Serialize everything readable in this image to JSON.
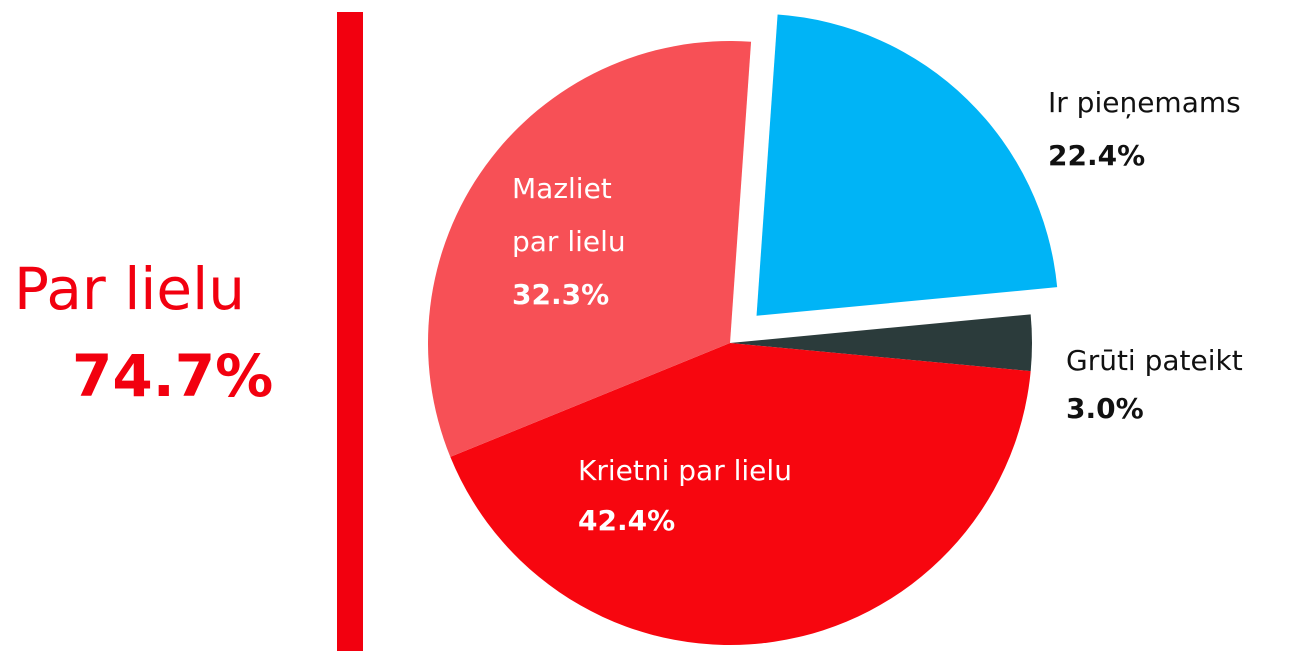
{
  "chart_data": {
    "type": "pie",
    "categories": [
      "Ir pieņemams",
      "Grūti pateikt",
      "Krietni par lielu",
      "Mazliet par lielu"
    ],
    "values": [
      22.4,
      3.0,
      42.4,
      32.3
    ],
    "value_labels": [
      "22.4%",
      "3.0%",
      "42.4%",
      "32.3%"
    ],
    "colors": [
      "#00b4f6",
      "#2b3b3b",
      "#f7060f",
      "#f75056"
    ],
    "summary": {
      "label": "Par lielu",
      "value": "74.7%"
    }
  }
}
